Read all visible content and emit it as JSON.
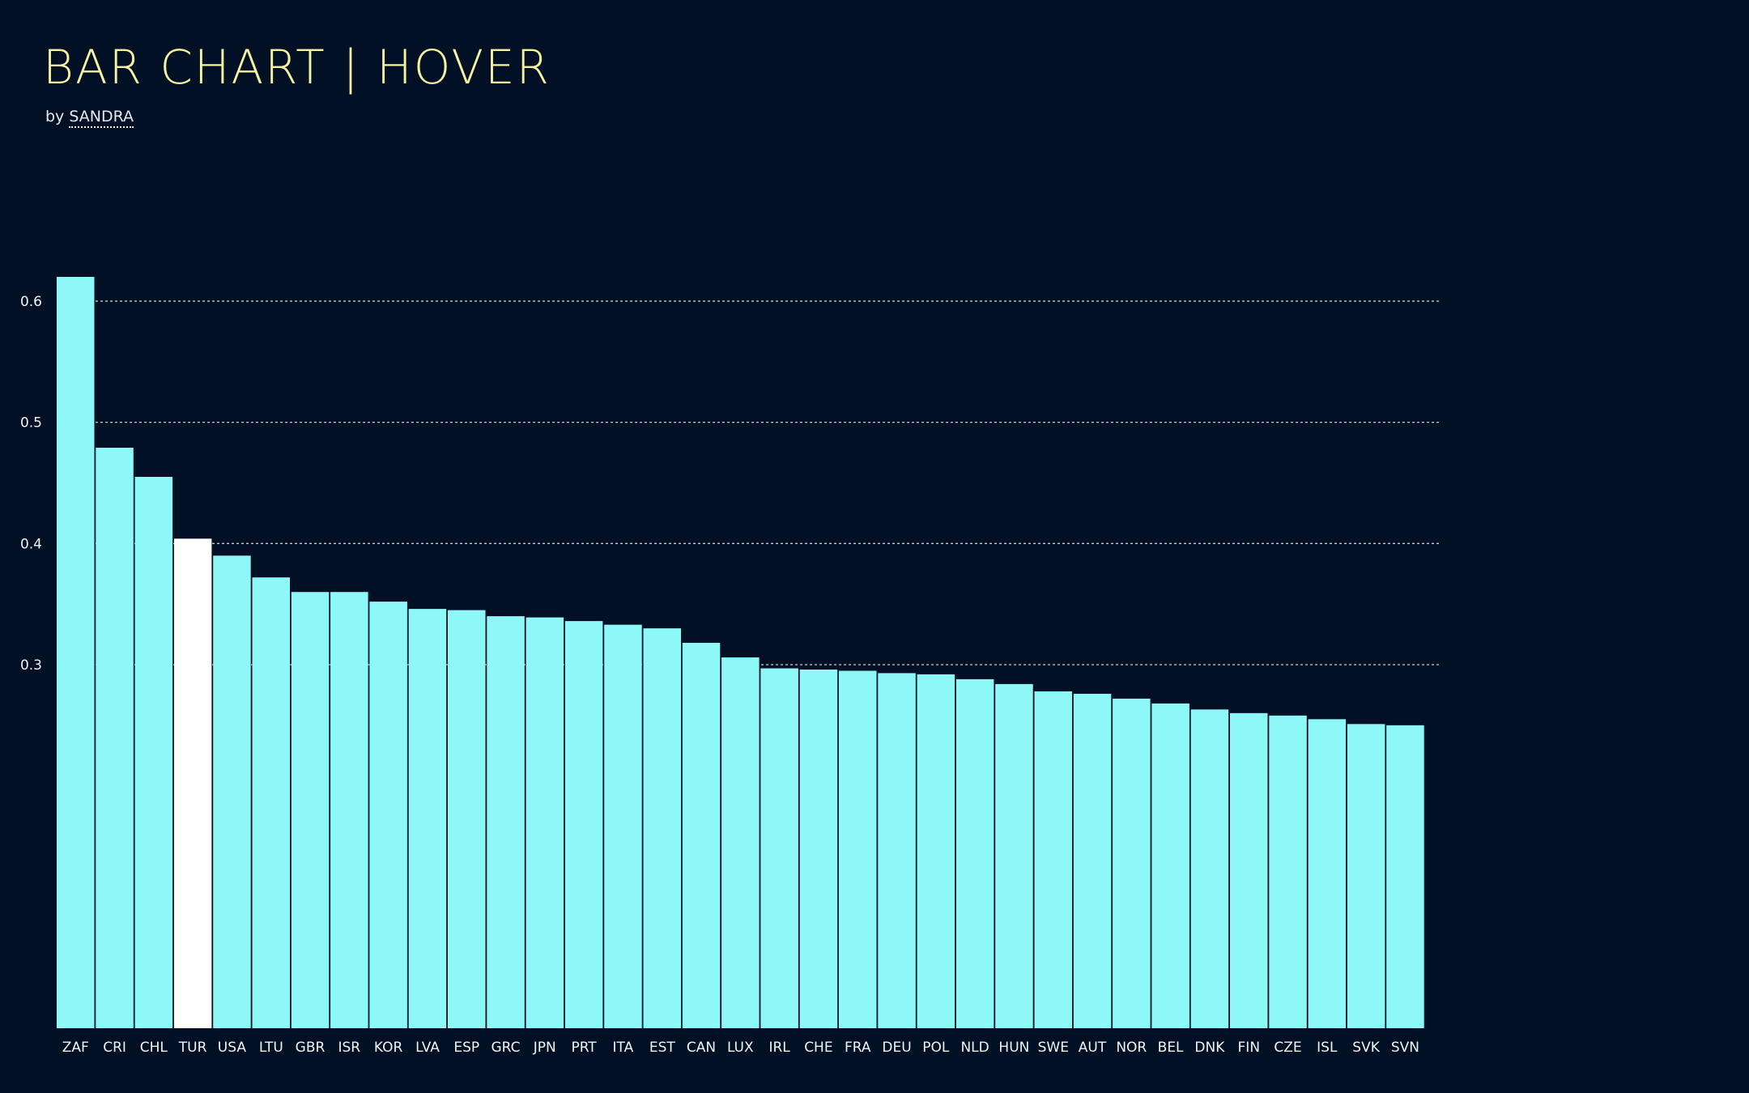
{
  "header": {
    "title": "BAR CHART | HOVER",
    "by_prefix": "by",
    "author": "SANDRA"
  },
  "colors": {
    "background": "#011024",
    "bar": "#8ef7f8",
    "bar_highlight": "#ffffff",
    "title": "#f6f3a0",
    "text": "#f2f4f7",
    "grid": "#c9ccd2"
  },
  "chart_data": {
    "type": "bar",
    "categories": [
      "ZAF",
      "CRI",
      "CHL",
      "TUR",
      "USA",
      "LTU",
      "GBR",
      "ISR",
      "KOR",
      "LVA",
      "ESP",
      "GRC",
      "JPN",
      "PRT",
      "ITA",
      "EST",
      "CAN",
      "LUX",
      "IRL",
      "CHE",
      "FRA",
      "DEU",
      "POL",
      "NLD",
      "HUN",
      "SWE",
      "AUT",
      "NOR",
      "BEL",
      "DNK",
      "FIN",
      "CZE",
      "ISL",
      "SVK",
      "SVN"
    ],
    "values": [
      0.62,
      0.479,
      0.455,
      0.404,
      0.39,
      0.372,
      0.36,
      0.36,
      0.352,
      0.346,
      0.345,
      0.34,
      0.339,
      0.336,
      0.333,
      0.33,
      0.318,
      0.306,
      0.297,
      0.296,
      0.295,
      0.293,
      0.292,
      0.288,
      0.284,
      0.278,
      0.276,
      0.272,
      0.268,
      0.263,
      0.26,
      0.258,
      0.255,
      0.251,
      0.25
    ],
    "highlighted": "TUR",
    "yticks": [
      0.3,
      0.4,
      0.5,
      0.6
    ],
    "ytick_labels": [
      "0.3",
      "0.4",
      "0.5",
      "0.6"
    ],
    "ylim": [
      0,
      0.62
    ],
    "grid": "horizontal dashed at y ticks",
    "title": "",
    "xlabel": "",
    "ylabel": ""
  }
}
